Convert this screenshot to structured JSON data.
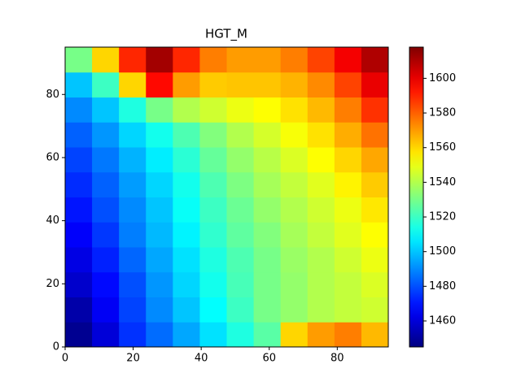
{
  "chart_data": {
    "type": "heatmap",
    "title": "HGT_M",
    "colormap": "jet",
    "xlim": [
      0,
      95
    ],
    "ylim": [
      0,
      95
    ],
    "xticks": [
      0,
      20,
      40,
      60,
      80
    ],
    "yticks": [
      0,
      20,
      40,
      60,
      80
    ],
    "clim": [
      1445,
      1618
    ],
    "cticks": [
      1460,
      1480,
      1500,
      1520,
      1540,
      1560,
      1580,
      1600
    ],
    "z": [
      [
        1448,
        1460,
        1475,
        1485,
        1495,
        1505,
        1515,
        1525,
        1560,
        1570,
        1575,
        1565
      ],
      [
        1452,
        1465,
        1478,
        1490,
        1500,
        1510,
        1520,
        1530,
        1535,
        1540,
        1543,
        1545
      ],
      [
        1458,
        1468,
        1480,
        1492,
        1503,
        1513,
        1522,
        1530,
        1535,
        1540,
        1543,
        1547
      ],
      [
        1462,
        1472,
        1484,
        1495,
        1505,
        1515,
        1523,
        1530,
        1536,
        1540,
        1545,
        1550
      ],
      [
        1466,
        1476,
        1488,
        1498,
        1508,
        1518,
        1526,
        1532,
        1538,
        1543,
        1548,
        1553
      ],
      [
        1470,
        1480,
        1490,
        1500,
        1511,
        1520,
        1528,
        1535,
        1540,
        1545,
        1550,
        1557
      ],
      [
        1474,
        1483,
        1493,
        1503,
        1513,
        1523,
        1531,
        1538,
        1543,
        1548,
        1555,
        1562
      ],
      [
        1478,
        1487,
        1497,
        1507,
        1517,
        1527,
        1535,
        1541,
        1547,
        1553,
        1560,
        1568
      ],
      [
        1483,
        1492,
        1503,
        1513,
        1523,
        1532,
        1540,
        1546,
        1552,
        1558,
        1567,
        1577
      ],
      [
        1490,
        1500,
        1515,
        1530,
        1540,
        1545,
        1550,
        1553,
        1558,
        1565,
        1575,
        1588
      ],
      [
        1500,
        1520,
        1560,
        1595,
        1570,
        1562,
        1563,
        1563,
        1566,
        1573,
        1585,
        1600
      ],
      [
        1530,
        1560,
        1590,
        1612,
        1590,
        1575,
        1570,
        1570,
        1575,
        1585,
        1598,
        1610
      ]
    ]
  }
}
